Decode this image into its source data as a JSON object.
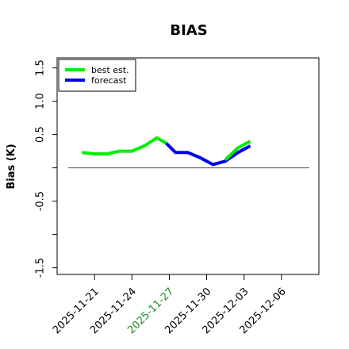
{
  "chart_data": {
    "type": "line",
    "title": "BIAS",
    "ylabel": "Bias (K)",
    "xlabel": "",
    "ylim": [
      -1.6,
      1.65
    ],
    "yticks": [
      1.5,
      1.0,
      0.5,
      0.0,
      -0.5,
      -1.0,
      -1.5
    ],
    "ytick_labels": [
      "1.5",
      "1.0",
      "0.5",
      "",
      "-0.5",
      "",
      "-1.5"
    ],
    "xlim": [
      "2025-11-18T00:00",
      "2025-12-09T00:00"
    ],
    "xticks": [
      "2025-11-21",
      "2025-11-24",
      "2025-11-27",
      "2025-11-30",
      "2025-12-03",
      "2025-12-06"
    ],
    "xtick_colors": [
      "#000000",
      "#000000",
      "#228b22",
      "#000000",
      "#000000",
      "#000000"
    ],
    "reference_line": 0.0,
    "grid": false,
    "legend_position": "top-left",
    "series": [
      {
        "name": "best est.",
        "color": "#00ee00",
        "points": [
          [
            "2025-11-20T00:00",
            0.23
          ],
          [
            "2025-11-21T00:00",
            0.21
          ],
          [
            "2025-11-22T00:00",
            0.21
          ],
          [
            "2025-11-23T00:00",
            0.25
          ],
          [
            "2025-11-24T00:00",
            0.25
          ],
          [
            "2025-11-25T00:00",
            0.33
          ],
          [
            "2025-11-26T00:00",
            0.45
          ],
          [
            "2025-11-26T18:00",
            0.37
          ]
        ]
      },
      {
        "name": "forecast",
        "color": "#0000ee",
        "points": [
          [
            "2025-11-26T18:00",
            0.37
          ],
          [
            "2025-11-27T12:00",
            0.23
          ],
          [
            "2025-11-28T12:00",
            0.23
          ],
          [
            "2025-11-29T12:00",
            0.15
          ],
          [
            "2025-11-30T12:00",
            0.05
          ],
          [
            "2025-12-01T12:00",
            0.1
          ],
          [
            "2025-12-02T12:00",
            0.23
          ],
          [
            "2025-12-03T12:00",
            0.33
          ]
        ]
      },
      {
        "name": "",
        "color": "#00ee00",
        "points": [
          [
            "2025-12-01T12:00",
            0.12
          ],
          [
            "2025-12-02T12:00",
            0.3
          ],
          [
            "2025-12-03T12:00",
            0.4
          ]
        ]
      }
    ]
  }
}
